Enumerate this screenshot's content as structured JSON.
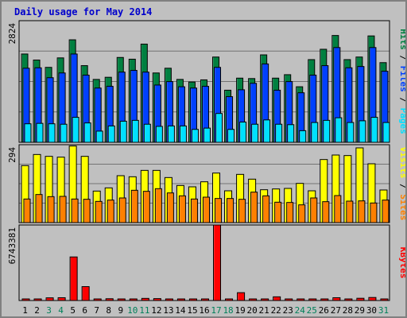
{
  "chart_data": [
    {
      "type": "bar",
      "title": "Daily usage for May 2014",
      "categories": [
        "1",
        "2",
        "3",
        "4",
        "5",
        "6",
        "7",
        "8",
        "9",
        "10",
        "11",
        "12",
        "13",
        "14",
        "15",
        "16",
        "17",
        "18",
        "19",
        "20",
        "21",
        "22",
        "23",
        "24",
        "25",
        "26",
        "27",
        "28",
        "29",
        "30",
        "31"
      ],
      "weekend_days": [
        "3",
        "4",
        "10",
        "11",
        "17",
        "18",
        "24",
        "25",
        "31"
      ],
      "ymax_label": "2824",
      "ylim": [
        0,
        2824
      ],
      "legend_right": [
        "Pages",
        "Files",
        "Hits"
      ],
      "legend_separator": " / ",
      "series": [
        {
          "name": "Hits",
          "color": "#008040",
          "values": [
            2050,
            1910,
            1740,
            1960,
            2380,
            1780,
            1460,
            1510,
            1970,
            1930,
            2280,
            1610,
            1720,
            1460,
            1400,
            1450,
            1980,
            1210,
            1490,
            1480,
            2030,
            1490,
            1570,
            1290,
            1920,
            2160,
            2480,
            1920,
            1980,
            2470,
            1850
          ]
        },
        {
          "name": "Files",
          "color": "#0040ff",
          "values": [
            1720,
            1730,
            1500,
            1610,
            2050,
            1560,
            1260,
            1300,
            1630,
            1670,
            1630,
            1330,
            1410,
            1290,
            1260,
            1300,
            1740,
            1060,
            1220,
            1370,
            1820,
            1210,
            1410,
            1150,
            1560,
            1780,
            2200,
            1730,
            1760,
            2200,
            1650
          ]
        },
        {
          "name": "Pages",
          "color": "#00e0ff",
          "values": [
            430,
            440,
            430,
            420,
            580,
            450,
            260,
            380,
            490,
            510,
            420,
            370,
            380,
            380,
            300,
            330,
            670,
            300,
            470,
            420,
            520,
            420,
            410,
            270,
            460,
            510,
            570,
            460,
            500,
            580,
            460
          ]
        }
      ]
    },
    {
      "type": "bar",
      "categories": [
        "1",
        "2",
        "3",
        "4",
        "5",
        "6",
        "7",
        "8",
        "9",
        "10",
        "11",
        "12",
        "13",
        "14",
        "15",
        "16",
        "17",
        "18",
        "19",
        "20",
        "21",
        "22",
        "23",
        "24",
        "25",
        "26",
        "27",
        "28",
        "29",
        "30",
        "31"
      ],
      "ymax_label": "294",
      "ylim": [
        0,
        294
      ],
      "legend_right": [
        "Sites",
        "Visits"
      ],
      "legend_separator": " / ",
      "series": [
        {
          "name": "Visits",
          "color": "#ffff00",
          "values": [
            215,
            257,
            250,
            247,
            289,
            250,
            119,
            131,
            177,
            173,
            197,
            197,
            170,
            140,
            135,
            154,
            187,
            120,
            182,
            164,
            124,
            127,
            129,
            148,
            120,
            238,
            255,
            253,
            282,
            222,
            123
          ]
        },
        {
          "name": "Sites",
          "color": "#ff8000",
          "values": [
            89,
            106,
            98,
            99,
            89,
            88,
            80,
            85,
            93,
            122,
            118,
            128,
            112,
            101,
            89,
            96,
            91,
            91,
            88,
            115,
            101,
            77,
            76,
            67,
            93,
            79,
            102,
            81,
            82,
            74,
            85
          ]
        }
      ]
    },
    {
      "type": "bar",
      "categories": [
        "1",
        "2",
        "3",
        "4",
        "5",
        "6",
        "7",
        "8",
        "9",
        "10",
        "11",
        "12",
        "13",
        "14",
        "15",
        "16",
        "17",
        "18",
        "19",
        "20",
        "21",
        "22",
        "23",
        "24",
        "25",
        "26",
        "27",
        "28",
        "29",
        "30",
        "31"
      ],
      "ymax_label": "6743381",
      "ylim": [
        0,
        6743381
      ],
      "legend_right": [
        "KBytes"
      ],
      "series": [
        {
          "name": "KBytes",
          "color": "#ff0000",
          "values": [
            40000,
            40000,
            240000,
            250000,
            3890000,
            1240000,
            50000,
            160000,
            40000,
            40000,
            190000,
            170000,
            40000,
            40000,
            60000,
            40000,
            6743381,
            40000,
            700000,
            60000,
            80000,
            330000,
            40000,
            40000,
            40000,
            40000,
            250000,
            40000,
            200000,
            270000,
            60000
          ]
        }
      ]
    }
  ]
}
